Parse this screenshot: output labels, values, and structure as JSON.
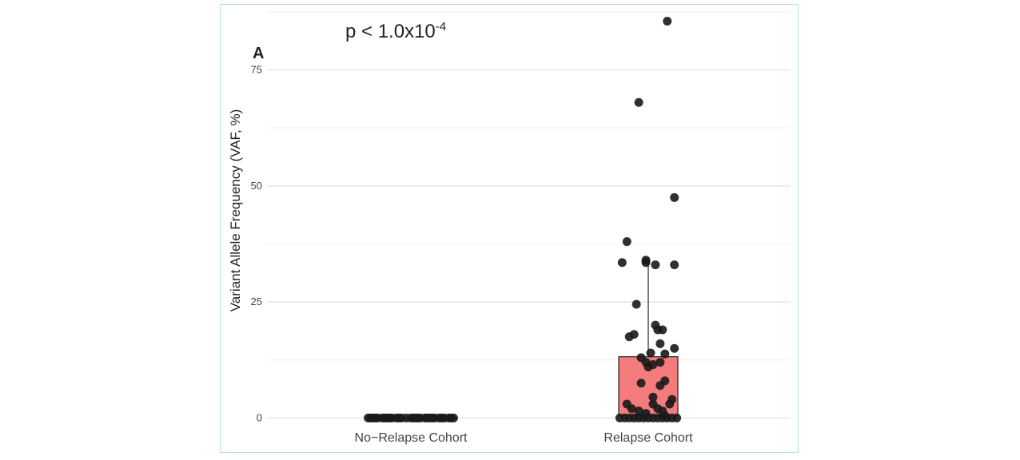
{
  "chart_data": {
    "type": "boxplot",
    "panel_label": "A",
    "annotation": {
      "base": "p < 1.0x10",
      "exponent": "-4"
    },
    "ylabel": "Variant Allele Frequency (VAF, %)",
    "xlabel": "",
    "ylim": [
      -2,
      88
    ],
    "yticks": [
      0,
      25,
      50,
      75
    ],
    "grid": true,
    "categories": [
      "No−Relapse Cohort",
      "Relapse Cohort"
    ],
    "box_color": "#f47c7c",
    "point_color": "#1a1a1a",
    "boxes": [
      {
        "category": "No−Relapse Cohort",
        "q1": 0,
        "median": 0,
        "q3": 0,
        "whisker_low": 0,
        "whisker_high": 0
      },
      {
        "category": "Relapse Cohort",
        "q1": 0.5,
        "median": 0.5,
        "q3": 13.2,
        "whisker_low": 0,
        "whisker_high": 33
      }
    ],
    "points": [
      {
        "category": "No−Relapse Cohort",
        "x_jitter": [
          -0.18,
          -0.16,
          -0.14,
          -0.12,
          -0.1,
          -0.08,
          -0.06,
          -0.04,
          -0.02,
          0,
          0.02,
          0.04,
          0.06,
          0.08,
          0.1,
          0.12,
          0.14,
          0.16,
          0.18,
          -0.15,
          -0.11,
          -0.05,
          0.01,
          0.07,
          0.13,
          -0.17,
          0.17,
          -0.09,
          0.09,
          0.03
        ],
        "y": [
          0,
          0,
          0,
          0,
          0,
          0,
          0,
          0,
          0,
          0,
          0,
          0,
          0,
          0,
          0,
          0,
          0,
          0,
          0,
          0,
          0,
          0,
          0,
          0,
          0,
          0,
          0,
          0,
          0,
          0
        ]
      },
      {
        "category": "Relapse Cohort",
        "x_jitter": [
          0.08,
          -0.04,
          0.11,
          -0.09,
          -0.05,
          -0.01,
          0.11,
          -0.01,
          0.03,
          -0.11,
          -0.06,
          -0.08,
          0.05,
          0.03,
          0.04,
          0.06,
          0.11,
          0.07,
          -0.03,
          0.01,
          0.05,
          0,
          -0.01,
          0.02,
          0.05,
          -0.03,
          0.07,
          0.02,
          0.02,
          0.09,
          -0.09,
          -0.07,
          -0.04,
          0.1,
          0.06,
          -0.01,
          0.04,
          0.07,
          -0.12,
          -0.1,
          -0.08,
          -0.06,
          -0.04,
          -0.02,
          0,
          0.02,
          0.04,
          0.06,
          0.08,
          0.1,
          0.12
        ],
        "y": [
          85.5,
          68,
          47.5,
          38,
          24.5,
          34,
          33,
          33.5,
          33,
          33.5,
          18,
          17.5,
          16,
          20,
          19,
          19,
          15,
          13.8,
          13,
          14,
          12,
          11,
          12,
          11.5,
          7,
          7.5,
          8,
          4.5,
          3,
          3,
          3,
          2,
          1.5,
          4,
          1.5,
          1,
          2,
          0.5,
          0,
          0,
          0,
          0,
          0,
          0,
          0,
          0,
          0,
          0,
          0,
          0,
          0
        ]
      }
    ]
  }
}
